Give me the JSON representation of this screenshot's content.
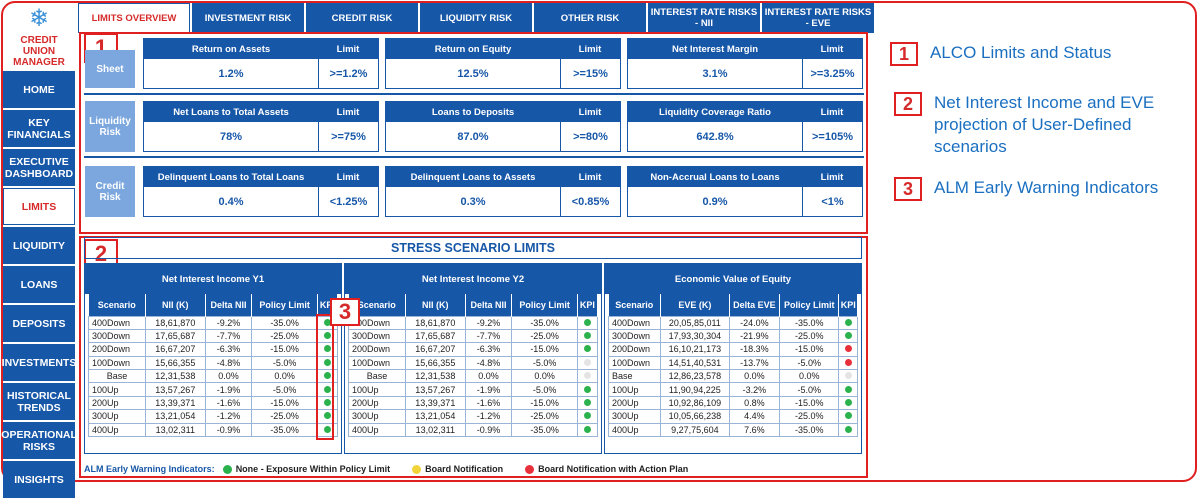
{
  "app": {
    "logo_line1": "CREDIT UNION",
    "logo_line2": "MANAGER"
  },
  "sidebar": {
    "items": [
      {
        "label": "HOME",
        "active": false
      },
      {
        "label": "KEY FINANCIALS",
        "active": false
      },
      {
        "label": "EXECUTIVE DASHBOARD",
        "active": false
      },
      {
        "label": "LIMITS",
        "active": true
      },
      {
        "label": "LIQUIDITY",
        "active": false
      },
      {
        "label": "LOANS",
        "active": false
      },
      {
        "label": "DEPOSITS",
        "active": false
      },
      {
        "label": "INVESTMENTS",
        "active": false
      },
      {
        "label": "HISTORICAL TRENDS",
        "active": false
      },
      {
        "label": "OPERATIONAL RISKS",
        "active": false
      },
      {
        "label": "INSIGHTS",
        "active": false
      }
    ]
  },
  "tabs": [
    {
      "label": "LIMITS OVERVIEW",
      "active": true
    },
    {
      "label": "INVESTMENT RISK",
      "active": false
    },
    {
      "label": "CREDIT RISK",
      "active": false
    },
    {
      "label": "LIQUIDITY RISK",
      "active": false
    },
    {
      "label": "OTHER RISK",
      "active": false
    },
    {
      "label": "INTEREST RATE RISKS - NII",
      "active": false
    },
    {
      "label": "INTEREST RATE RISKS - EVE",
      "active": false
    }
  ],
  "limits": {
    "limit_header": "Limit",
    "rows": [
      {
        "label": "Sheet",
        "metrics": [
          {
            "name": "Return on Assets",
            "value": "1.2%",
            "limit": ">=1.2%"
          },
          {
            "name": "Return on Equity",
            "value": "12.5%",
            "limit": ">=15%"
          },
          {
            "name": "Net Interest Margin",
            "value": "3.1%",
            "limit": ">=3.25%"
          }
        ]
      },
      {
        "label": "Liquidity Risk",
        "metrics": [
          {
            "name": "Net Loans to Total Assets",
            "value": "78%",
            "limit": ">=75%"
          },
          {
            "name": "Loans to Deposits",
            "value": "87.0%",
            "limit": ">=80%"
          },
          {
            "name": "Liquidity Coverage Ratio",
            "value": "642.8%",
            "limit": ">=105%"
          }
        ]
      },
      {
        "label": "Credit Risk",
        "metrics": [
          {
            "name": "Delinquent Loans to Total Loans",
            "value": "0.4%",
            "limit": "<1.25%"
          },
          {
            "name": "Delinquent Loans to Assets",
            "value": "0.3%",
            "limit": "<0.85%"
          },
          {
            "name": "Non-Accrual Loans to Loans",
            "value": "0.9%",
            "limit": "<1%"
          }
        ]
      }
    ]
  },
  "stress": {
    "title": "STRESS SCENARIO LIMITS",
    "panels": [
      {
        "title": "Net Interest Income Y1",
        "columns": [
          "Scenario",
          "NII (K)",
          "Delta NII",
          "Policy Limit",
          "KPI"
        ],
        "rows": [
          [
            "400Down",
            "18,61,870",
            "-9.2%",
            "-35.0%",
            "green"
          ],
          [
            "300Down",
            "17,65,687",
            "-7.7%",
            "-25.0%",
            "green"
          ],
          [
            "200Down",
            "16,67,207",
            "-6.3%",
            "-15.0%",
            "green"
          ],
          [
            "100Down",
            "15,66,355",
            "-4.8%",
            "-5.0%",
            "green"
          ],
          [
            "Base",
            "12,31,538",
            "0.0%",
            "0.0%",
            "green"
          ],
          [
            "100Up",
            "13,57,267",
            "-1.9%",
            "-5.0%",
            "green"
          ],
          [
            "200Up",
            "13,39,371",
            "-1.6%",
            "-15.0%",
            "green"
          ],
          [
            "300Up",
            "13,21,054",
            "-1.2%",
            "-25.0%",
            "green"
          ],
          [
            "400Up",
            "13,02,311",
            "-0.9%",
            "-35.0%",
            "green"
          ]
        ]
      },
      {
        "title": "Net Interest Income Y2",
        "columns": [
          "Scenario",
          "NII (K)",
          "Delta NII",
          "Policy Limit",
          "KPI"
        ],
        "rows": [
          [
            "400Down",
            "18,61,870",
            "-9.2%",
            "-35.0%",
            "green"
          ],
          [
            "300Down",
            "17,65,687",
            "-7.7%",
            "-25.0%",
            "green"
          ],
          [
            "200Down",
            "16,67,207",
            "-6.3%",
            "-15.0%",
            "green"
          ],
          [
            "100Down",
            "15,66,355",
            "-4.8%",
            "-5.0%",
            "grey"
          ],
          [
            "Base",
            "12,31,538",
            "0.0%",
            "0.0%",
            "grey"
          ],
          [
            "100Up",
            "13,57,267",
            "-1.9%",
            "-5.0%",
            "green"
          ],
          [
            "200Up",
            "13,39,371",
            "-1.6%",
            "-15.0%",
            "green"
          ],
          [
            "300Up",
            "13,21,054",
            "-1.2%",
            "-25.0%",
            "green"
          ],
          [
            "400Up",
            "13,02,311",
            "-0.9%",
            "-35.0%",
            "green"
          ]
        ]
      },
      {
        "title": "Economic Value of Equity",
        "columns": [
          "Scenario",
          "EVE (K)",
          "Delta EVE",
          "Policy Limit",
          "KPI"
        ],
        "rows": [
          [
            "400Down",
            "20,05,85,011",
            "-24.0%",
            "-35.0%",
            "green"
          ],
          [
            "300Down",
            "17,93,30,304",
            "-21.9%",
            "-25.0%",
            "green"
          ],
          [
            "200Down",
            "16,10,21,173",
            "-18.3%",
            "-15.0%",
            "red"
          ],
          [
            "100Down",
            "14,51,40,531",
            "-13.7%",
            "-5.0%",
            "red"
          ],
          [
            "Base",
            "12,86,23,578",
            "0.0%",
            "0.0%",
            "grey"
          ],
          [
            "100Up",
            "11,90,94,225",
            "-3.2%",
            "-5.0%",
            "green"
          ],
          [
            "200Up",
            "10,92,86,109",
            "0.8%",
            "-15.0%",
            "green"
          ],
          [
            "300Up",
            "10,05,66,238",
            "4.4%",
            "-25.0%",
            "green"
          ],
          [
            "400Up",
            "9,27,75,604",
            "7.6%",
            "-35.0%",
            "green"
          ]
        ]
      }
    ]
  },
  "legend": {
    "title": "ALM Early Warning Indicators:",
    "items": [
      {
        "label": "None - Exposure Within Policy Limit",
        "color": "#2bb24c"
      },
      {
        "label": "Board Notification",
        "color": "#f0d43a"
      },
      {
        "label": "Board Notification with Action Plan",
        "color": "#e8303a"
      }
    ]
  },
  "kpi_colors": {
    "green": "#2bb24c",
    "red": "#e8303a",
    "grey": "#e4e4e4"
  },
  "markers": [
    "1",
    "2",
    "3"
  ],
  "annotations": [
    {
      "num": "1",
      "text": "ALCO Limits and Status"
    },
    {
      "num": "2",
      "text": "Net Interest Income and EVE projection of User-Defined scenarios"
    },
    {
      "num": "3",
      "text": "ALM Early Warning Indicators"
    }
  ]
}
